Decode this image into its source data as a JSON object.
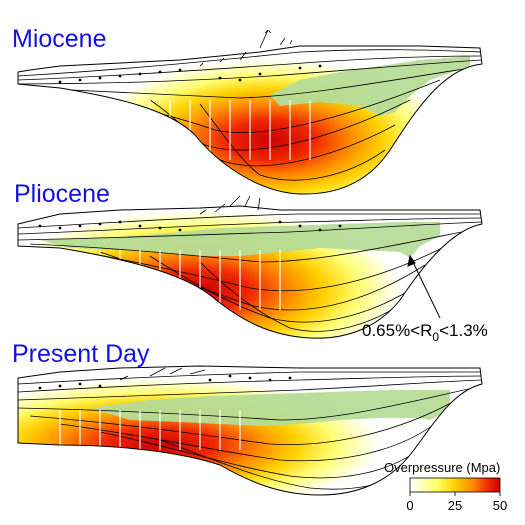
{
  "panels": [
    {
      "id": "miocene",
      "title": "Miocene"
    },
    {
      "id": "pliocene",
      "title": "Pliocene"
    },
    {
      "id": "present",
      "title": "Present Day"
    }
  ],
  "annotation": {
    "pre": "0.65%<R",
    "sub": "0",
    "post": "<1.3%"
  },
  "colorbar": {
    "title": "Overpressure (Mpa)",
    "ticks": [
      "0",
      "25",
      "50"
    ],
    "range": [
      0,
      50
    ],
    "colors": [
      "#ffffff",
      "#ffff66",
      "#ffd000",
      "#ff8a00",
      "#f03000",
      "#cc0000"
    ]
  },
  "colors": {
    "title": "#1212e0",
    "maturity_window": "#b5dc98",
    "outline": "#000000",
    "high_pressure": "#cc0000",
    "low_pressure": "#ffff66"
  }
}
